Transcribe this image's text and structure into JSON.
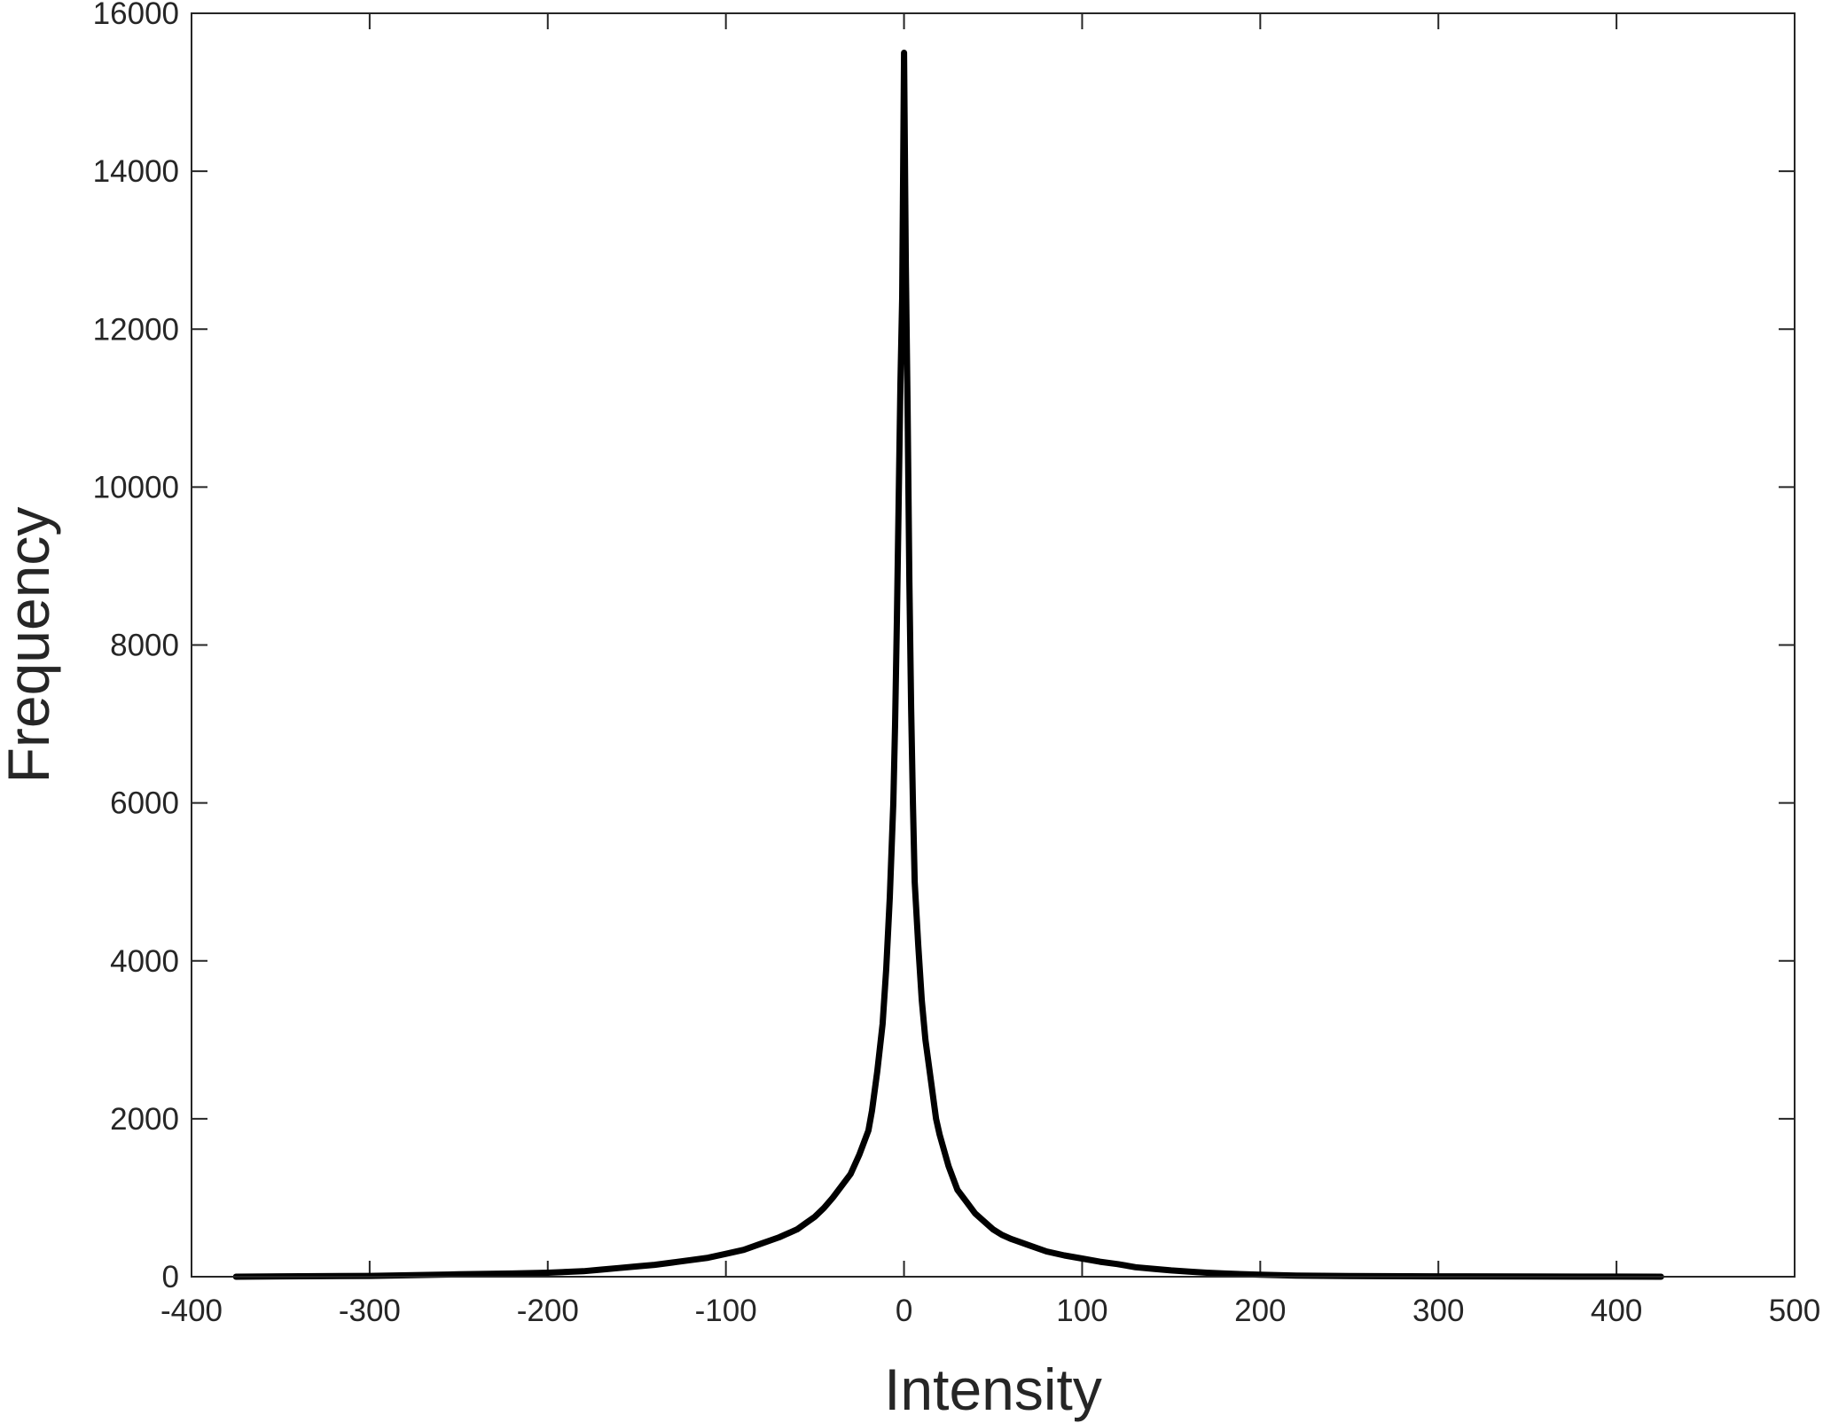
{
  "chart_data": {
    "type": "line",
    "title": "",
    "xlabel": "Intensity",
    "ylabel": "Frequency",
    "xlim": [
      -400,
      500
    ],
    "ylim": [
      0,
      16000
    ],
    "xticks": [
      -400,
      -300,
      -200,
      -100,
      0,
      100,
      200,
      300,
      400,
      500
    ],
    "yticks": [
      0,
      2000,
      4000,
      6000,
      8000,
      10000,
      12000,
      14000,
      16000
    ],
    "xtick_labels": [
      "-400",
      "-300",
      "-200",
      "-100",
      "0",
      "100",
      "200",
      "300",
      "400",
      "500"
    ],
    "ytick_labels": [
      "0",
      "2000",
      "4000",
      "6000",
      "8000",
      "10000",
      "12000",
      "14000",
      "16000"
    ],
    "grid": false,
    "legend": false,
    "colors": {
      "series": "#000000",
      "axes": "#262626",
      "background": "#ffffff"
    },
    "series": [
      {
        "x": [
          -375,
          -350,
          -300,
          -250,
          -220,
          -200,
          -180,
          -170,
          -160,
          -150,
          -140,
          -130,
          -120,
          -110,
          -100,
          -90,
          -80,
          -70,
          -60,
          -55,
          -50,
          -45,
          -40,
          -35,
          -30,
          -25,
          -20,
          -18,
          -15,
          -12,
          -10,
          -8,
          -6,
          -5,
          -4,
          -3,
          -2,
          -1,
          0,
          1,
          2,
          3,
          4,
          5,
          6,
          8,
          10,
          12,
          15,
          18,
          20,
          25,
          30,
          35,
          40,
          45,
          50,
          55,
          60,
          70,
          80,
          90,
          100,
          110,
          120,
          130,
          140,
          150,
          160,
          170,
          180,
          200,
          220,
          250,
          300,
          350,
          400,
          425
        ],
        "y": [
          0,
          5,
          10,
          30,
          40,
          50,
          70,
          90,
          110,
          130,
          150,
          180,
          210,
          240,
          290,
          340,
          420,
          500,
          600,
          680,
          760,
          870,
          1000,
          1150,
          1300,
          1550,
          1850,
          2100,
          2600,
          3200,
          3900,
          4800,
          6000,
          7000,
          8300,
          9800,
          11300,
          12400,
          15500,
          12800,
          11000,
          8800,
          7200,
          6000,
          5000,
          4200,
          3500,
          3000,
          2500,
          2000,
          1800,
          1400,
          1100,
          950,
          800,
          700,
          600,
          530,
          480,
          400,
          320,
          270,
          230,
          190,
          160,
          120,
          100,
          80,
          65,
          50,
          40,
          25,
          15,
          8,
          4,
          2,
          1,
          0
        ]
      }
    ]
  }
}
